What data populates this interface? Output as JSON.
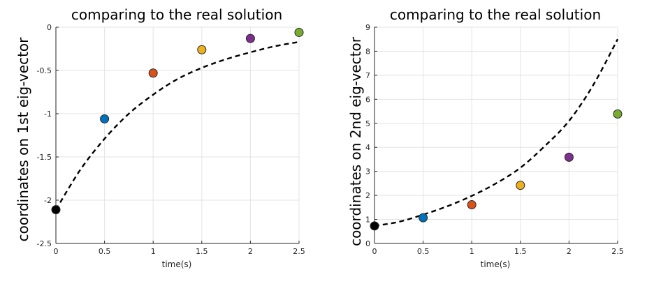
{
  "chart_data": [
    {
      "type": "scatter",
      "title": "comparing to the real solution",
      "xlabel": "time(s)",
      "ylabel": "coordinates on 1st eig-vector",
      "xlim": [
        0,
        2.5
      ],
      "ylim": [
        -2.5,
        0
      ],
      "xticks": [
        "0",
        "0.5",
        "1",
        "1.5",
        "2",
        "2.5"
      ],
      "yticks": [
        "0",
        "-0.5",
        "-1",
        "-1.5",
        "-2",
        "-2.5"
      ],
      "grid": true,
      "points": [
        {
          "x": 0,
          "y": -2.11,
          "color": "#000000"
        },
        {
          "x": 0.5,
          "y": -1.06,
          "color": "#0072bd"
        },
        {
          "x": 1.0,
          "y": -0.53,
          "color": "#d95319"
        },
        {
          "x": 1.5,
          "y": -0.26,
          "color": "#edb120"
        },
        {
          "x": 2.0,
          "y": -0.13,
          "color": "#7e2f8e"
        },
        {
          "x": 2.5,
          "y": -0.06,
          "color": "#77ac30"
        }
      ],
      "curve": {
        "style": "dashed",
        "color": "#000000",
        "x": [
          0,
          0.25,
          0.5,
          0.75,
          1.0,
          1.25,
          1.5,
          1.75,
          2.0,
          2.25,
          2.5
        ],
        "y": [
          -2.11,
          -1.65,
          -1.29,
          -1.0,
          -0.78,
          -0.6,
          -0.47,
          -0.37,
          -0.29,
          -0.22,
          -0.17
        ]
      }
    },
    {
      "type": "scatter",
      "title": "comparing to the real solution",
      "xlabel": "time(s)",
      "ylabel": "coordinates on 2nd eig-vector",
      "xlim": [
        0,
        2.5
      ],
      "ylim": [
        0,
        9
      ],
      "xticks": [
        "0",
        "0.5",
        "1",
        "1.5",
        "2",
        "2.5"
      ],
      "yticks": [
        "0",
        "1",
        "2",
        "3",
        "4",
        "5",
        "6",
        "7",
        "8",
        "9"
      ],
      "grid": true,
      "points": [
        {
          "x": 0,
          "y": 0.73,
          "color": "#000000"
        },
        {
          "x": 0.5,
          "y": 1.07,
          "color": "#0072bd"
        },
        {
          "x": 1.0,
          "y": 1.61,
          "color": "#d95319"
        },
        {
          "x": 1.5,
          "y": 2.42,
          "color": "#edb120"
        },
        {
          "x": 2.0,
          "y": 3.59,
          "color": "#7e2f8e"
        },
        {
          "x": 2.5,
          "y": 5.39,
          "color": "#77ac30"
        }
      ],
      "curve": {
        "style": "dashed",
        "color": "#000000",
        "x": [
          0,
          0.25,
          0.5,
          0.75,
          1.0,
          1.25,
          1.5,
          1.75,
          2.0,
          2.25,
          2.5
        ],
        "y": [
          0.73,
          0.9,
          1.2,
          1.55,
          1.98,
          2.5,
          3.15,
          4.05,
          5.1,
          6.6,
          8.5
        ]
      }
    }
  ]
}
